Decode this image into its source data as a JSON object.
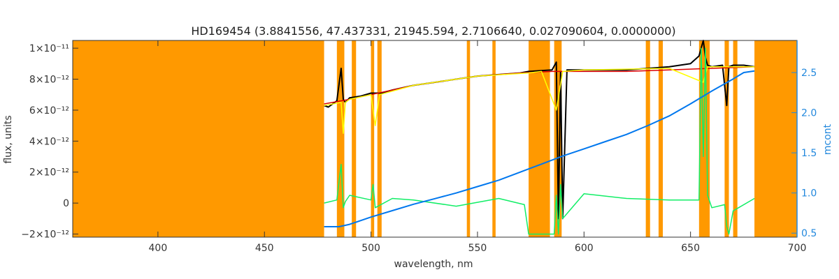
{
  "chart_data": {
    "type": "line",
    "title": "HD169454    (3.8841556, 47.437331, 21945.594, 2.7106640, 0.027090604, 0.0000000)",
    "xlabel": "wavelength, nm",
    "ylabel": "flux, units",
    "y2label": "mcont",
    "xlim": [
      360,
      700
    ],
    "ylim": [
      -2.2e-12,
      1.05e-11
    ],
    "y2lim": [
      0.45,
      2.9
    ],
    "x_ticks": [
      400,
      450,
      500,
      550,
      600,
      650,
      700
    ],
    "y_ticks": [
      {
        "value": -2e-12,
        "label": "−2×10⁻¹²"
      },
      {
        "value": 0,
        "label": "0"
      },
      {
        "value": 2e-12,
        "label": "2×10⁻¹²"
      },
      {
        "value": 4e-12,
        "label": "4×10⁻¹²"
      },
      {
        "value": 6e-12,
        "label": "6×10⁻¹²"
      },
      {
        "value": 8e-12,
        "label": "8×10⁻¹²"
      },
      {
        "value": 1e-11,
        "label": "1×10⁻¹¹"
      }
    ],
    "y2_ticks": [
      0.5,
      1.0,
      1.5,
      2.0,
      2.5
    ],
    "masked_regions": [
      [
        360,
        478
      ],
      [
        484,
        487.5
      ],
      [
        491,
        493
      ],
      [
        500,
        501.5
      ],
      [
        503,
        505
      ],
      [
        545,
        546.5
      ],
      [
        557,
        558.5
      ],
      [
        574,
        584
      ],
      [
        586,
        589.5
      ],
      [
        629,
        631
      ],
      [
        635,
        637
      ],
      [
        654,
        659
      ],
      [
        666,
        668
      ],
      [
        670,
        672
      ],
      [
        680,
        700
      ]
    ],
    "series": [
      {
        "color": "#000000",
        "x": [
          478,
          480,
          484,
          486,
          487,
          488,
          490,
          495,
          500,
          505,
          510,
          520,
          530,
          540,
          550,
          560,
          570,
          574,
          585,
          587,
          588,
          589,
          590,
          592,
          595,
          600,
          610,
          620,
          630,
          640,
          650,
          654,
          656,
          657,
          658,
          660,
          665,
          667,
          668,
          670,
          675,
          680
        ],
        "y": [
          6.3e-12,
          6.2e-12,
          6.6e-12,
          8.7e-12,
          6.7e-12,
          6.5e-12,
          6.8e-12,
          6.9e-12,
          7.1e-12,
          7.1e-12,
          7.3e-12,
          7.6e-12,
          7.8e-12,
          8e-12,
          8.2e-12,
          8.3e-12,
          8.4e-12,
          8.5e-12,
          8.6e-12,
          9.1e-12,
          -1e-12,
          8.5e-12,
          -1e-12,
          8.6e-12,
          8.6e-12,
          8.6e-12,
          8.6e-12,
          8.6e-12,
          8.7e-12,
          8.8e-12,
          9e-12,
          9.5e-12,
          1.05e-11,
          9.4e-12,
          8.9e-12,
          8.8e-12,
          8.9e-12,
          6.3e-12,
          8.8e-12,
          8.9e-12,
          8.9e-12,
          8.8e-12
        ]
      },
      {
        "color": "#dd0000",
        "x": [
          478,
          490,
          500,
          510,
          520,
          530,
          540,
          550,
          560,
          570,
          585,
          600,
          620,
          640,
          660,
          680
        ],
        "y": [
          6.4e-12,
          6.7e-12,
          7e-12,
          7.3e-12,
          7.6e-12,
          7.8e-12,
          8e-12,
          8.2e-12,
          8.3e-12,
          8.4e-12,
          8.5e-12,
          8.5e-12,
          8.5e-12,
          8.6e-12,
          8.7e-12,
          8.8e-12
        ]
      },
      {
        "color": "#ffff00",
        "x": [
          478,
          486,
          487,
          488,
          490,
          500,
          502,
          504,
          520,
          550,
          574,
          580,
          587,
          590,
          600,
          640,
          656,
          658,
          680
        ],
        "y": [
          6.3e-12,
          6.5e-12,
          4.5e-12,
          6.5e-12,
          6.7e-12,
          7e-12,
          5e-12,
          7e-12,
          7.6e-12,
          8.2e-12,
          8.4e-12,
          8.5e-12,
          6e-12,
          8.5e-12,
          8.6e-12,
          8.7e-12,
          7.8e-12,
          8.8e-12,
          8.8e-12
        ]
      },
      {
        "color": "#11ee66",
        "x": [
          478,
          484,
          486,
          487,
          488,
          490,
          500,
          501,
          502,
          510,
          520,
          540,
          560,
          572,
          574,
          586,
          587,
          588,
          589,
          590,
          600,
          620,
          640,
          654,
          655,
          656,
          657,
          658,
          660,
          666,
          667,
          668,
          670,
          680
        ],
        "y": [
          0,
          2e-13,
          2.5e-12,
          -3e-13,
          1e-13,
          5e-13,
          2e-13,
          1.2e-12,
          -3e-13,
          3e-13,
          2e-13,
          -2e-13,
          3e-13,
          -1e-13,
          -2e-12,
          -2e-12,
          5e-13,
          -2e-12,
          1.2e-12,
          -1e-12,
          6e-13,
          3e-13,
          2e-13,
          2e-13,
          1e-11,
          3e-12,
          1e-11,
          5e-13,
          -3e-13,
          -1e-13,
          -1.5e-12,
          -2e-12,
          -5e-13,
          3e-13
        ]
      },
      {
        "color": "#0077ee",
        "axis": "y2",
        "x": [
          478,
          485,
          490,
          500,
          510,
          520,
          530,
          540,
          550,
          560,
          570,
          580,
          590,
          600,
          610,
          620,
          630,
          640,
          650,
          660,
          670,
          675,
          680
        ],
        "y": [
          0.58,
          0.58,
          0.61,
          0.7,
          0.78,
          0.86,
          0.93,
          1.0,
          1.08,
          1.16,
          1.26,
          1.36,
          1.46,
          1.55,
          1.64,
          1.73,
          1.84,
          1.96,
          2.11,
          2.27,
          2.42,
          2.5,
          2.52
        ]
      }
    ]
  }
}
